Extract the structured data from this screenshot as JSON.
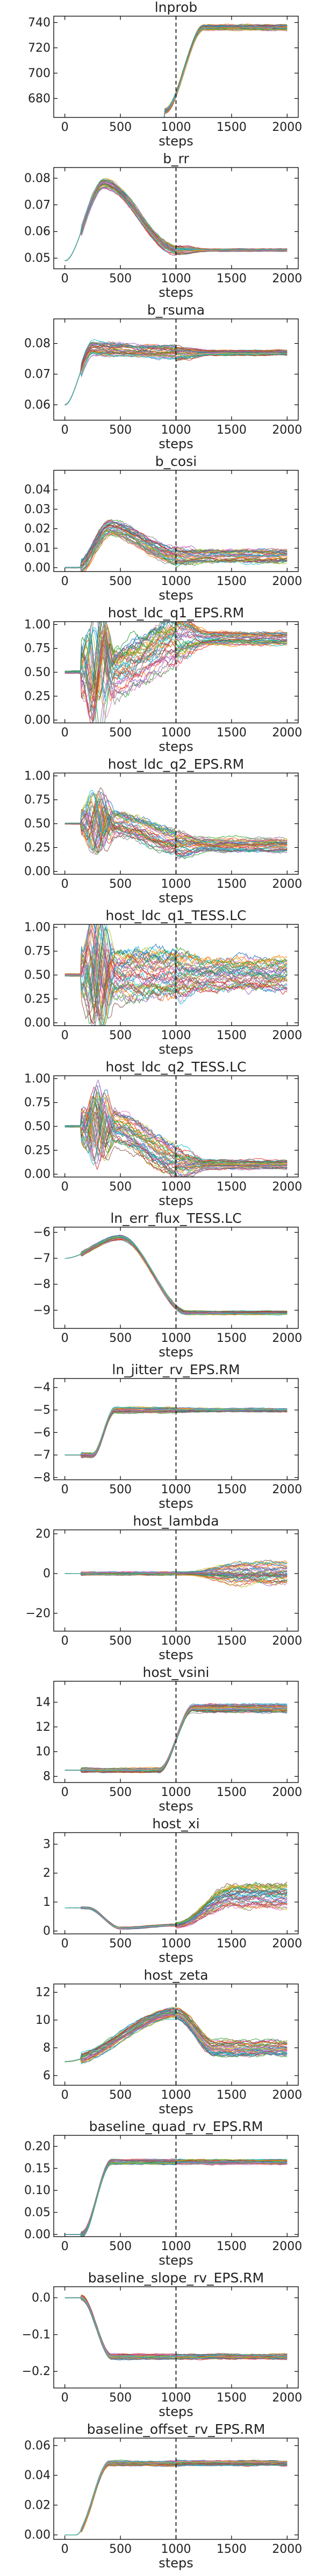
{
  "figure": {
    "colors": [
      "#1f77b4",
      "#ff7f0e",
      "#2ca02c",
      "#d62728",
      "#9467bd",
      "#8c564b",
      "#e377c2",
      "#7f7f7f",
      "#bcbd22",
      "#17becf"
    ]
  },
  "chart_data": [
    {
      "type": "line",
      "title": "lnprob",
      "xlabel": "steps",
      "xlim": [
        -100,
        2100
      ],
      "xticks": [
        0,
        500,
        1000,
        1500,
        2000
      ],
      "ylim": [
        665,
        745
      ],
      "yticks": [
        680,
        700,
        720,
        740
      ],
      "vline": 1000,
      "series_count": 40,
      "style": "lnprob",
      "start": 670,
      "plateau": 736,
      "spread": 4,
      "end_spread": 4,
      "rise_start": 900,
      "rise_end": 1250
    },
    {
      "type": "line",
      "title": "b_rr",
      "xlabel": "steps",
      "xlim": [
        -100,
        2100
      ],
      "xticks": [
        0,
        500,
        1000,
        1500,
        2000
      ],
      "ylim": [
        0.046,
        0.084
      ],
      "yticks": [
        0.05,
        0.06,
        0.07,
        0.08
      ],
      "vline": 1000,
      "series_count": 40,
      "style": "converge",
      "start": 0.049,
      "peak": 0.078,
      "peak_at": 350,
      "plateau": 0.053,
      "spread": 0.003,
      "end_spread": 0.0008
    },
    {
      "type": "line",
      "title": "b_rsuma",
      "xlabel": "steps",
      "xlim": [
        -100,
        2100
      ],
      "xticks": [
        0,
        500,
        1000,
        1500,
        2000
      ],
      "ylim": [
        0.055,
        0.088
      ],
      "yticks": [
        0.06,
        0.07,
        0.08
      ],
      "vline": 1000,
      "series_count": 40,
      "style": "converge",
      "start": 0.06,
      "peak": 0.078,
      "peak_at": 250,
      "plateau": 0.077,
      "spread": 0.004,
      "end_spread": 0.0015
    },
    {
      "type": "line",
      "title": "b_cosi",
      "xlabel": "steps",
      "xlim": [
        -100,
        2100
      ],
      "xticks": [
        0,
        500,
        1000,
        1500,
        2000
      ],
      "ylim": [
        -0.002,
        0.05
      ],
      "yticks": [
        0.0,
        0.01,
        0.02,
        0.03,
        0.04
      ],
      "vline": 1000,
      "series_count": 40,
      "style": "noisy_low",
      "start": 0.0,
      "peak": 0.02,
      "plateau": 0.006,
      "spread": 0.008,
      "end_spread": 0.006
    },
    {
      "type": "line",
      "title": "host_ldc_q1_EPS.RM",
      "xlabel": "steps",
      "xlim": [
        -100,
        2100
      ],
      "xticks": [
        0,
        500,
        1000,
        1500,
        2000
      ],
      "ylim": [
        -0.03,
        1.03
      ],
      "yticks": [
        0.0,
        0.25,
        0.5,
        0.75,
        1.0
      ],
      "vline": 1000,
      "series_count": 40,
      "style": "oscillate_up",
      "start": 0.5,
      "plateau": 0.85,
      "spread": 0.45,
      "end_spread": 0.12
    },
    {
      "type": "line",
      "title": "host_ldc_q2_EPS.RM",
      "xlabel": "steps",
      "xlim": [
        -100,
        2100
      ],
      "xticks": [
        0,
        500,
        1000,
        1500,
        2000
      ],
      "ylim": [
        -0.03,
        1.03
      ],
      "yticks": [
        0.0,
        0.25,
        0.5,
        0.75,
        1.0
      ],
      "vline": 1000,
      "series_count": 40,
      "style": "dip_spread",
      "start": 0.5,
      "plateau": 0.28,
      "spread": 0.25,
      "end_spread": 0.12
    },
    {
      "type": "line",
      "title": "host_ldc_q1_TESS.LC",
      "xlabel": "steps",
      "xlim": [
        -100,
        2100
      ],
      "xticks": [
        0,
        500,
        1000,
        1500,
        2000
      ],
      "ylim": [
        -0.03,
        1.03
      ],
      "yticks": [
        0.0,
        0.25,
        0.5,
        0.75,
        1.0
      ],
      "vline": 1000,
      "series_count": 40,
      "style": "oscillate_wide",
      "start": 0.5,
      "plateau": 0.5,
      "spread": 0.45,
      "end_spread": 0.3
    },
    {
      "type": "line",
      "title": "host_ldc_q2_TESS.LC",
      "xlabel": "steps",
      "xlim": [
        -100,
        2100
      ],
      "xticks": [
        0,
        500,
        1000,
        1500,
        2000
      ],
      "ylim": [
        -0.03,
        1.03
      ],
      "yticks": [
        0.0,
        0.25,
        0.5,
        0.75,
        1.0
      ],
      "vline": 1000,
      "series_count": 40,
      "style": "oscillate_down",
      "start": 0.5,
      "plateau": 0.1,
      "spread": 0.3,
      "end_spread": 0.08
    },
    {
      "type": "line",
      "title": "ln_err_flux_TESS.LC",
      "xlabel": "steps",
      "xlim": [
        -100,
        2100
      ],
      "xticks": [
        0,
        500,
        1000,
        1500,
        2000
      ],
      "ylim": [
        -9.7,
        -5.8
      ],
      "yticks": [
        -9,
        -8,
        -7,
        -6
      ],
      "vline": 1000,
      "series_count": 40,
      "style": "hump_down",
      "start": -7.0,
      "peak": -6.2,
      "peak_at": 500,
      "plateau": -9.1,
      "spread": 0.15,
      "end_spread": 0.12
    },
    {
      "type": "line",
      "title": "ln_jitter_rv_EPS.RM",
      "xlabel": "steps",
      "xlim": [
        -100,
        2100
      ],
      "xticks": [
        0,
        500,
        1000,
        1500,
        2000
      ],
      "ylim": [
        -8.1,
        -3.6
      ],
      "yticks": [
        -8,
        -7,
        -6,
        -5,
        -4
      ],
      "vline": 1000,
      "series_count": 40,
      "style": "step_up",
      "start": -7.0,
      "plateau": -5.0,
      "spread": 0.2,
      "end_spread": 0.15,
      "rise_start": 250,
      "rise_end": 450
    },
    {
      "type": "line",
      "title": "host_lambda",
      "xlabel": "steps",
      "xlim": [
        -100,
        2100
      ],
      "xticks": [
        0,
        500,
        1000,
        1500,
        2000
      ],
      "ylim": [
        -29,
        22
      ],
      "yticks": [
        -20,
        0,
        20
      ],
      "vline": 1000,
      "series_count": 40,
      "style": "diverge",
      "start": 0.0,
      "plateau": 0.0,
      "spread": 1.5,
      "end_spread": 9
    },
    {
      "type": "line",
      "title": "host_vsini",
      "xlabel": "steps",
      "xlim": [
        -100,
        2100
      ],
      "xticks": [
        0,
        500,
        1000,
        1500,
        2000
      ],
      "ylim": [
        7.5,
        15.7
      ],
      "yticks": [
        8,
        10,
        12,
        14
      ],
      "vline": 1000,
      "series_count": 40,
      "style": "step_up",
      "start": 8.5,
      "plateau": 13.5,
      "spread": 0.3,
      "end_spread": 0.6,
      "rise_start": 850,
      "rise_end": 1150
    },
    {
      "type": "line",
      "title": "host_xi",
      "xlabel": "steps",
      "xlim": [
        -100,
        2100
      ],
      "xticks": [
        0,
        500,
        1000,
        1500,
        2000
      ],
      "ylim": [
        -0.1,
        3.4
      ],
      "yticks": [
        0,
        1,
        2,
        3
      ],
      "vline": 1000,
      "series_count": 40,
      "style": "dip_grow",
      "start": 0.8,
      "plateau": 1.2,
      "spread": 0.15,
      "end_spread": 0.7
    },
    {
      "type": "line",
      "title": "host_zeta",
      "xlabel": "steps",
      "xlim": [
        -100,
        2100
      ],
      "xticks": [
        0,
        500,
        1000,
        1500,
        2000
      ],
      "ylim": [
        5.3,
        12.6
      ],
      "yticks": [
        6,
        8,
        10,
        12
      ],
      "vline": 1000,
      "series_count": 40,
      "style": "hump_mid",
      "start": 7.0,
      "peak": 10.5,
      "peak_at": 1000,
      "plateau": 8.0,
      "spread": 0.6,
      "end_spread": 0.9
    },
    {
      "type": "line",
      "title": "baseline_quad_rv_EPS.RM",
      "xlabel": "steps",
      "xlim": [
        -100,
        2100
      ],
      "xticks": [
        0,
        500,
        1000,
        1500,
        2000
      ],
      "ylim": [
        -0.005,
        0.225
      ],
      "yticks": [
        0.0,
        0.05,
        0.1,
        0.15,
        0.2
      ],
      "vline": 1000,
      "series_count": 40,
      "style": "step_up",
      "start": 0.0,
      "plateau": 0.165,
      "spread": 0.01,
      "end_spread": 0.01,
      "rise_start": 150,
      "rise_end": 420
    },
    {
      "type": "line",
      "title": "baseline_slope_rv_EPS.RM",
      "xlabel": "steps",
      "xlim": [
        -100,
        2100
      ],
      "xticks": [
        0,
        500,
        1000,
        1500,
        2000
      ],
      "ylim": [
        -0.245,
        0.03
      ],
      "yticks": [
        -0.2,
        -0.1,
        0.0
      ],
      "vline": 1000,
      "series_count": 40,
      "style": "step_down",
      "start": 0.0,
      "plateau": -0.16,
      "spread": 0.012,
      "end_spread": 0.012,
      "rise_start": 150,
      "rise_end": 420
    },
    {
      "type": "line",
      "title": "baseline_offset_rv_EPS.RM",
      "xlabel": "steps",
      "xlim": [
        -100,
        2100
      ],
      "xticks": [
        0,
        500,
        1000,
        1500,
        2000
      ],
      "ylim": [
        -0.003,
        0.065
      ],
      "yticks": [
        0.0,
        0.02,
        0.04,
        0.06
      ],
      "vline": 1000,
      "series_count": 40,
      "style": "step_up",
      "start": 0.0,
      "plateau": 0.048,
      "spread": 0.003,
      "end_spread": 0.003,
      "rise_start": 100,
      "rise_end": 400
    }
  ]
}
